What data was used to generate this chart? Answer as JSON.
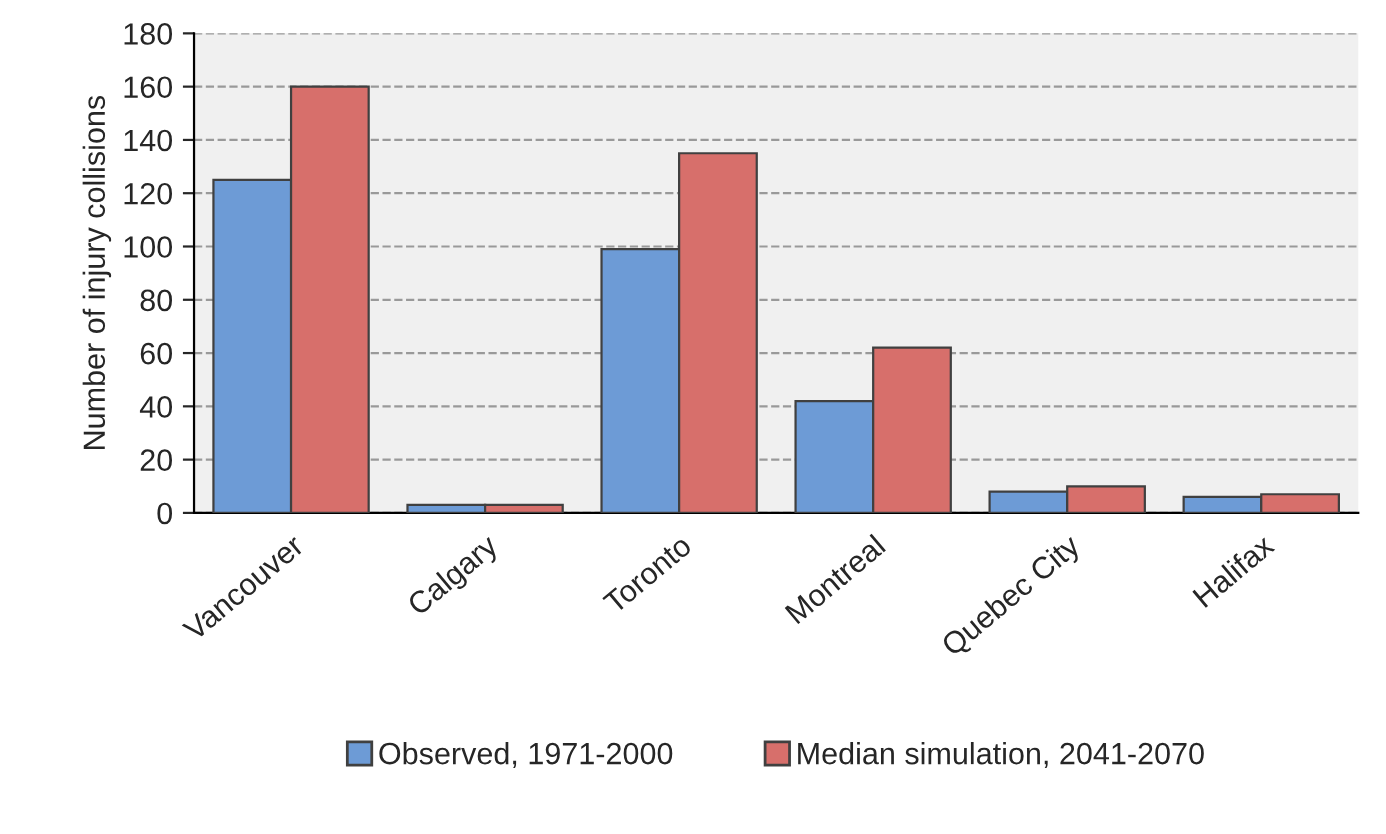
{
  "chart_data": {
    "type": "bar",
    "ylabel": "Number of injury collisions",
    "categories": [
      "Vancouver",
      "Calgary",
      "Toronto",
      "Montreal",
      "Quebec City",
      "Halifax"
    ],
    "series": [
      {
        "name": "Observed, 1971-2000",
        "color": "#6d9bd6",
        "values": [
          125,
          3,
          99,
          42,
          8,
          6
        ]
      },
      {
        "name": "Median simulation, 2041-2070",
        "color": "#d76f6b",
        "values": [
          160,
          3,
          135,
          62,
          10,
          7
        ]
      }
    ],
    "ylim": [
      0,
      180
    ],
    "yticks": [
      0,
      20,
      40,
      60,
      80,
      100,
      120,
      140,
      160,
      180
    ],
    "grid": "y",
    "legend": "bottom"
  }
}
